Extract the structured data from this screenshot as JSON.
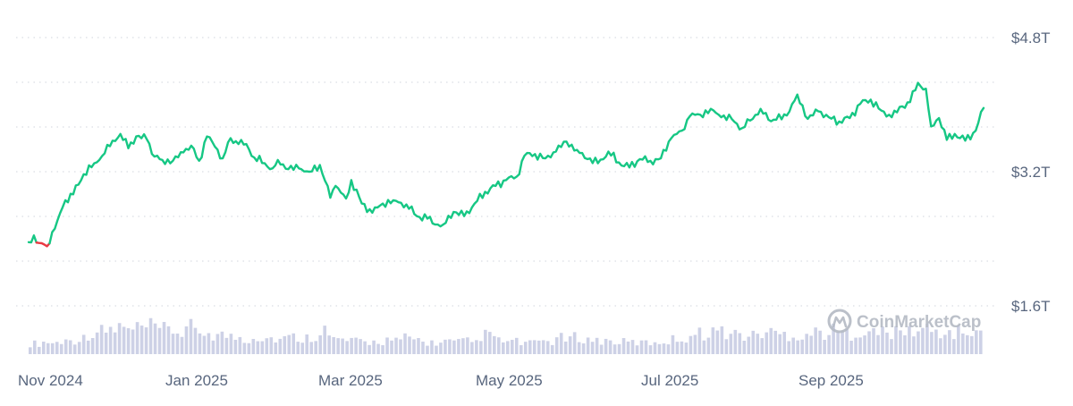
{
  "chart_data": {
    "type": "line",
    "title": "",
    "xlabel": "",
    "ylabel": "",
    "y_tick_labels": [
      "$4.8T",
      "$3.2T",
      "$1.6T"
    ],
    "y_tick_values": [
      4.8,
      3.2,
      1.6
    ],
    "ylim": [
      1.6,
      4.8
    ],
    "y_unit": "USD trillions",
    "x_tick_labels": [
      "Nov 2024",
      "Jan 2025",
      "Mar 2025",
      "May 2025",
      "Jul 2025",
      "Sep 2025"
    ],
    "xlim": [
      "2024-11-01",
      "2025-10-31"
    ],
    "grid": "horizontal dotted",
    "watermark": "CoinMarketCap",
    "colors": {
      "up": "#16c784",
      "down": "#ea3943",
      "grid": "#d9dde4",
      "axis_text": "#58667e",
      "volume": "#cdd1e6"
    },
    "series": [
      {
        "values_note": "market cap, USD trillions",
        "x": [
          "2024-11-01",
          "2024-11-03",
          "2024-11-05",
          "2024-11-08",
          "2024-11-10",
          "2024-11-12",
          "2024-11-15",
          "2024-11-18",
          "2024-11-22",
          "2024-11-26",
          "2024-11-30",
          "2024-12-03",
          "2024-12-06",
          "2024-12-09",
          "2024-12-12",
          "2024-12-16",
          "2024-12-19",
          "2024-12-22",
          "2024-12-26",
          "2024-12-30",
          "2025-01-02",
          "2025-01-05",
          "2025-01-08",
          "2025-01-11",
          "2025-01-14",
          "2025-01-17",
          "2025-01-20",
          "2025-01-23",
          "2025-01-26",
          "2025-01-30",
          "2025-02-02",
          "2025-02-04",
          "2025-02-08",
          "2025-02-12",
          "2025-02-16",
          "2025-02-20",
          "2025-02-24",
          "2025-02-26",
          "2025-02-28",
          "2025-03-02",
          "2025-03-04",
          "2025-03-08",
          "2025-03-12",
          "2025-03-16",
          "2025-03-20",
          "2025-03-25",
          "2025-03-29",
          "2025-04-02",
          "2025-04-06",
          "2025-04-08",
          "2025-04-12",
          "2025-04-16",
          "2025-04-20",
          "2025-04-24",
          "2025-04-28",
          "2025-05-02",
          "2025-05-06",
          "2025-05-09",
          "2025-05-13",
          "2025-05-17",
          "2025-05-21",
          "2025-05-25",
          "2025-05-29",
          "2025-06-02",
          "2025-06-06",
          "2025-06-10",
          "2025-06-14",
          "2025-06-18",
          "2025-06-22",
          "2025-06-26",
          "2025-06-30",
          "2025-07-04",
          "2025-07-08",
          "2025-07-11",
          "2025-07-15",
          "2025-07-19",
          "2025-07-23",
          "2025-07-27",
          "2025-07-31",
          "2025-08-03",
          "2025-08-07",
          "2025-08-10",
          "2025-08-13",
          "2025-08-17",
          "2025-08-21",
          "2025-08-25",
          "2025-08-29",
          "2025-09-02",
          "2025-09-06",
          "2025-09-10",
          "2025-09-14",
          "2025-09-18",
          "2025-09-22",
          "2025-09-26",
          "2025-09-30",
          "2025-10-03",
          "2025-10-06",
          "2025-10-09",
          "2025-10-11",
          "2025-10-14",
          "2025-10-17",
          "2025-10-20",
          "2025-10-24",
          "2025-10-28",
          "2025-10-31"
        ],
        "y": [
          2.36,
          2.44,
          2.35,
          2.31,
          2.48,
          2.62,
          2.86,
          2.93,
          3.17,
          3.3,
          3.42,
          3.57,
          3.65,
          3.48,
          3.62,
          3.59,
          3.38,
          3.34,
          3.33,
          3.43,
          3.51,
          3.33,
          3.62,
          3.5,
          3.36,
          3.6,
          3.53,
          3.53,
          3.37,
          3.3,
          3.24,
          3.34,
          3.23,
          3.24,
          3.2,
          3.28,
          2.89,
          3.03,
          2.95,
          2.88,
          3.1,
          2.82,
          2.71,
          2.82,
          2.86,
          2.81,
          2.67,
          2.64,
          2.57,
          2.57,
          2.72,
          2.67,
          2.82,
          2.96,
          3.03,
          3.1,
          3.14,
          3.39,
          3.41,
          3.36,
          3.44,
          3.56,
          3.46,
          3.35,
          3.3,
          3.44,
          3.31,
          3.25,
          3.35,
          3.33,
          3.36,
          3.6,
          3.69,
          3.86,
          3.88,
          3.95,
          3.85,
          3.83,
          3.72,
          3.81,
          3.95,
          3.82,
          3.82,
          3.87,
          4.12,
          3.83,
          3.92,
          3.85,
          3.8,
          3.84,
          4.01,
          4.06,
          3.93,
          3.85,
          3.98,
          4.03,
          4.26,
          4.19,
          3.74,
          3.84,
          3.58,
          3.65,
          3.57,
          3.69,
          3.96
        ]
      }
    ],
    "down_segment": {
      "from": "2024-11-04",
      "to": "2024-11-08"
    },
    "volume": {
      "note": "trading volume bars at bottom (relative height 0-1, no axis printed)",
      "values": [
        0.28,
        0.32,
        0.3,
        0.35,
        0.38,
        0.42,
        0.55,
        0.6,
        0.66,
        0.7,
        0.62,
        0.68,
        0.71,
        0.66,
        0.64,
        0.58,
        0.7,
        0.54,
        0.6,
        0.52,
        0.5,
        0.45,
        0.4,
        0.47,
        0.44,
        0.42,
        0.4,
        0.45,
        0.43,
        0.49,
        0.71,
        0.42,
        0.38,
        0.35,
        0.33,
        0.32,
        0.35,
        0.38,
        0.34,
        0.43,
        0.39,
        0.32,
        0.3,
        0.33,
        0.31,
        0.34,
        0.32,
        0.5,
        0.48,
        0.35,
        0.33,
        0.3,
        0.28,
        0.36,
        0.34,
        0.42,
        0.4,
        0.44,
        0.38,
        0.36,
        0.35,
        0.33,
        0.32,
        0.31,
        0.3,
        0.33,
        0.35,
        0.39,
        0.44,
        0.52,
        0.55,
        0.62,
        0.58,
        0.55,
        0.5,
        0.48,
        0.55,
        0.6,
        0.53,
        0.52,
        0.49,
        0.54,
        0.58,
        0.57,
        0.61,
        0.55,
        0.62,
        0.59,
        0.55,
        0.6,
        0.56,
        0.58,
        0.62,
        0.66,
        0.6,
        0.57,
        0.55,
        0.58,
        0.6,
        0.52
      ]
    }
  }
}
